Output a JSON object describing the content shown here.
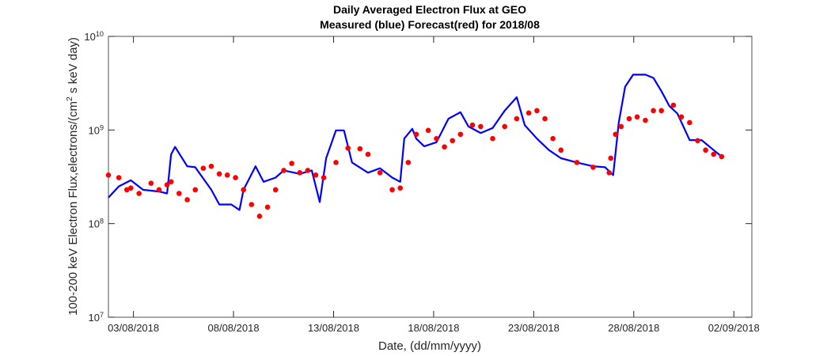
{
  "chart_data": {
    "type": "line",
    "title": "Daily Averaged Electron Flux at GEO",
    "subtitle": "Measured (blue) Forecast(red) for 2018/08",
    "xlabel": "Date, (dd/mm/yyyy)",
    "ylabel": "100-200 keV Electron Flux,electrons/(cm^2 s keV day)",
    "xlim": [
      1.75,
      33.9
    ],
    "xticks": [
      {
        "value": 3,
        "label": "03/08/2018"
      },
      {
        "value": 8,
        "label": "08/08/2018"
      },
      {
        "value": 13,
        "label": "13/08/2018"
      },
      {
        "value": 18,
        "label": "18/08/2018"
      },
      {
        "value": 23,
        "label": "23/08/2018"
      },
      {
        "value": 28,
        "label": "28/08/2018"
      },
      {
        "value": 33,
        "label": "02/09/2018"
      }
    ],
    "ylim": [
      10000000,
      10000000000
    ],
    "ylog": true,
    "yticks": [
      {
        "value": 10000000,
        "label": "10^7"
      },
      {
        "value": 100000000,
        "label": "10^8"
      },
      {
        "value": 1000000000,
        "label": "10^9"
      },
      {
        "value": 10000000000,
        "label": "10^10"
      }
    ],
    "grid": false,
    "series": [
      {
        "color": "#0000ff",
        "style": "line",
        "x": [
          1.75,
          2.27,
          2.87,
          3.48,
          4.28,
          4.68,
          4.88,
          5.08,
          5.69,
          6.09,
          6.89,
          7.29,
          7.89,
          8.3,
          8.5,
          9.1,
          9.5,
          10.1,
          10.51,
          11.31,
          11.91,
          12.31,
          12.63,
          13.12,
          13.52,
          13.92,
          14.72,
          15.32,
          15.93,
          16.33,
          16.53,
          16.93,
          17.13,
          17.53,
          18.14,
          18.74,
          19.34,
          19.74,
          20.35,
          20.95,
          21.55,
          22.15,
          22.55,
          23.16,
          23.76,
          24.36,
          25.16,
          25.97,
          26.57,
          26.97,
          27.25,
          27.57,
          27.97,
          28.58,
          28.98,
          29.38,
          29.78,
          30.18,
          30.79,
          31.39,
          31.99,
          32.39
        ],
        "values": [
          190000000.0,
          250000000.0,
          290000000.0,
          230000000.0,
          220000000.0,
          210000000.0,
          550000000.0,
          660000000.0,
          410000000.0,
          400000000.0,
          230000000.0,
          160000000.0,
          160000000.0,
          140000000.0,
          230000000.0,
          410000000.0,
          280000000.0,
          310000000.0,
          370000000.0,
          340000000.0,
          370000000.0,
          170000000.0,
          500000000.0,
          990000000.0,
          990000000.0,
          450000000.0,
          350000000.0,
          390000000.0,
          310000000.0,
          280000000.0,
          810000000.0,
          1030000000.0,
          810000000.0,
          670000000.0,
          740000000.0,
          1320000000.0,
          1550000000.0,
          1090000000.0,
          930000000.0,
          1050000000.0,
          1610000000.0,
          2240000000.0,
          1130000000.0,
          810000000.0,
          610000000.0,
          500000000.0,
          450000000.0,
          410000000.0,
          400000000.0,
          330000000.0,
          1200000000.0,
          2900000000.0,
          3900000000.0,
          3900000000.0,
          3600000000.0,
          2600000000.0,
          1800000000.0,
          1500000000.0,
          780000000.0,
          780000000.0,
          610000000.0,
          520000000.0
        ]
      },
      {
        "color": "#ff0000",
        "style": "dots",
        "x": [
          1.75,
          2.27,
          2.67,
          2.87,
          3.28,
          3.88,
          4.28,
          4.68,
          4.88,
          5.28,
          5.69,
          6.09,
          6.49,
          6.89,
          7.29,
          7.69,
          8.1,
          8.5,
          8.9,
          9.3,
          9.7,
          10.1,
          10.51,
          10.91,
          11.31,
          11.71,
          12.11,
          12.51,
          13.12,
          13.72,
          14.32,
          14.72,
          15.32,
          15.93,
          16.33,
          16.73,
          17.13,
          17.73,
          18.14,
          18.54,
          18.94,
          19.34,
          19.94,
          20.35,
          20.95,
          21.55,
          22.15,
          22.75,
          23.16,
          23.56,
          23.96,
          24.36,
          25.16,
          25.97,
          26.77,
          26.85,
          27.09,
          27.37,
          27.77,
          28.17,
          28.58,
          28.98,
          29.38,
          29.98,
          30.38,
          30.79,
          31.19,
          31.59,
          31.99,
          32.39
        ],
        "values": [
          330000000.0,
          310000000.0,
          230000000.0,
          240000000.0,
          210000000.0,
          270000000.0,
          230000000.0,
          260000000.0,
          280000000.0,
          210000000.0,
          180000000.0,
          230000000.0,
          390000000.0,
          410000000.0,
          340000000.0,
          330000000.0,
          310000000.0,
          230000000.0,
          160000000.0,
          120000000.0,
          150000000.0,
          230000000.0,
          370000000.0,
          440000000.0,
          350000000.0,
          370000000.0,
          330000000.0,
          310000000.0,
          450000000.0,
          640000000.0,
          630000000.0,
          550000000.0,
          350000000.0,
          230000000.0,
          240000000.0,
          450000000.0,
          900000000.0,
          990000000.0,
          810000000.0,
          660000000.0,
          770000000.0,
          900000000.0,
          1130000000.0,
          1090000000.0,
          810000000.0,
          1090000000.0,
          1320000000.0,
          1520000000.0,
          1610000000.0,
          1320000000.0,
          810000000.0,
          610000000.0,
          450000000.0,
          400000000.0,
          350000000.0,
          500000000.0,
          900000000.0,
          1090000000.0,
          1320000000.0,
          1380000000.0,
          1270000000.0,
          1610000000.0,
          1610000000.0,
          1840000000.0,
          1380000000.0,
          1200000000.0,
          770000000.0,
          610000000.0,
          550000000.0,
          520000000.0
        ]
      }
    ]
  }
}
